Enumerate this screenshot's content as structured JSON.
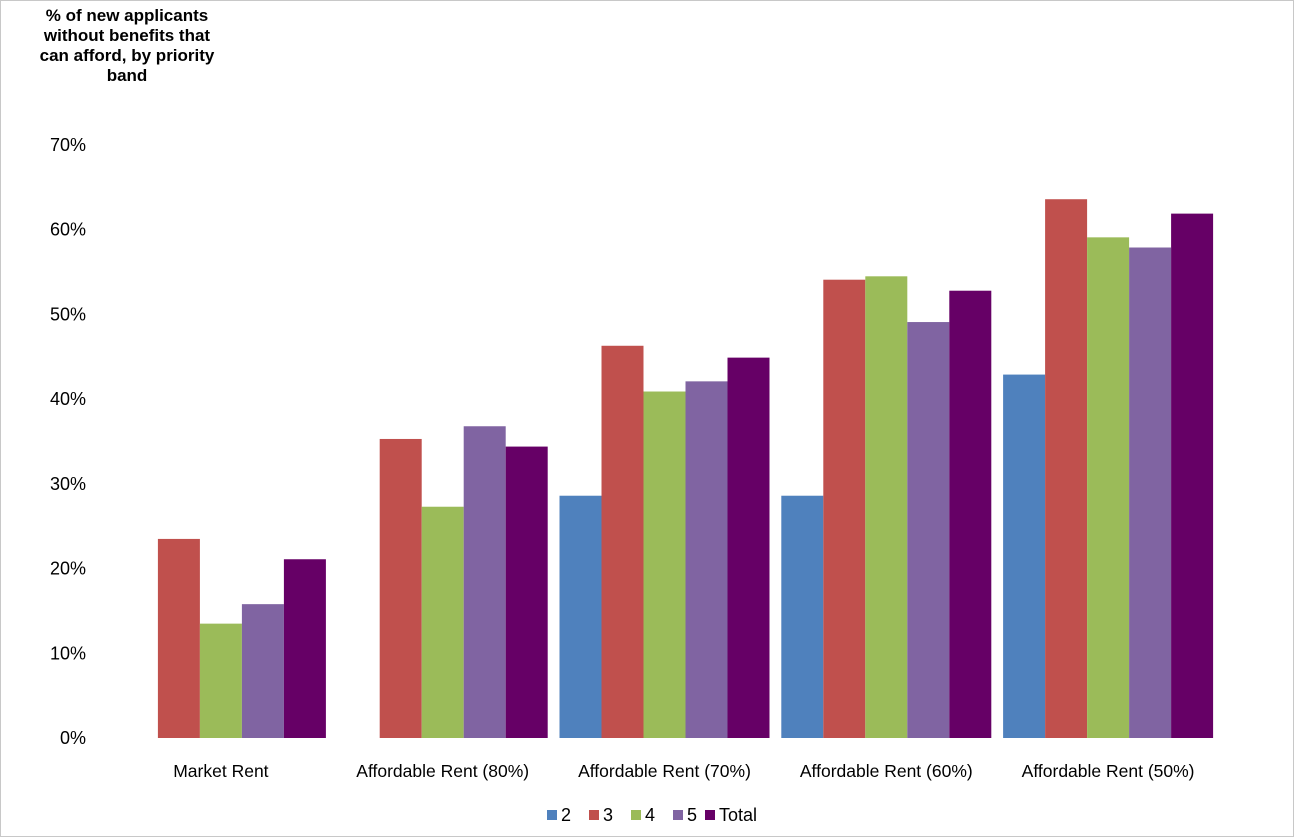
{
  "chart_data": {
    "type": "bar",
    "title": "",
    "xlabel": "",
    "ylabel": "% of new applicants without benefits that can afford, by priority band",
    "ylabel_lines": [
      "% of new applicants",
      "without benefits that",
      "can afford, by priority",
      "band"
    ],
    "ylim": [
      0,
      70
    ],
    "y_ticks": [
      0,
      10,
      20,
      30,
      40,
      50,
      60,
      70
    ],
    "y_tick_labels": [
      "0%",
      "10%",
      "20%",
      "30%",
      "40%",
      "50%",
      "60%",
      "70%"
    ],
    "grid": false,
    "legend_position": "bottom",
    "categories": [
      "Market Rent",
      "Affordable Rent (80%)",
      "Affordable Rent (70%)",
      "Affordable Rent (60%)",
      "Affordable Rent (50%)"
    ],
    "series": [
      {
        "name": "2",
        "color": "#4f81bd",
        "values": [
          0,
          0,
          28.6,
          28.6,
          42.9
        ]
      },
      {
        "name": "3",
        "color": "#c0504d",
        "values": [
          23.5,
          35.3,
          46.3,
          54.1,
          63.6
        ]
      },
      {
        "name": "4",
        "color": "#9bbb59",
        "values": [
          13.5,
          27.3,
          40.9,
          54.5,
          59.1
        ]
      },
      {
        "name": "5",
        "color": "#8064a2",
        "values": [
          15.8,
          36.8,
          42.1,
          49.1,
          57.9
        ]
      },
      {
        "name": "Total",
        "color": "#660066",
        "values": [
          21.1,
          34.4,
          44.9,
          52.8,
          61.9
        ]
      }
    ]
  }
}
